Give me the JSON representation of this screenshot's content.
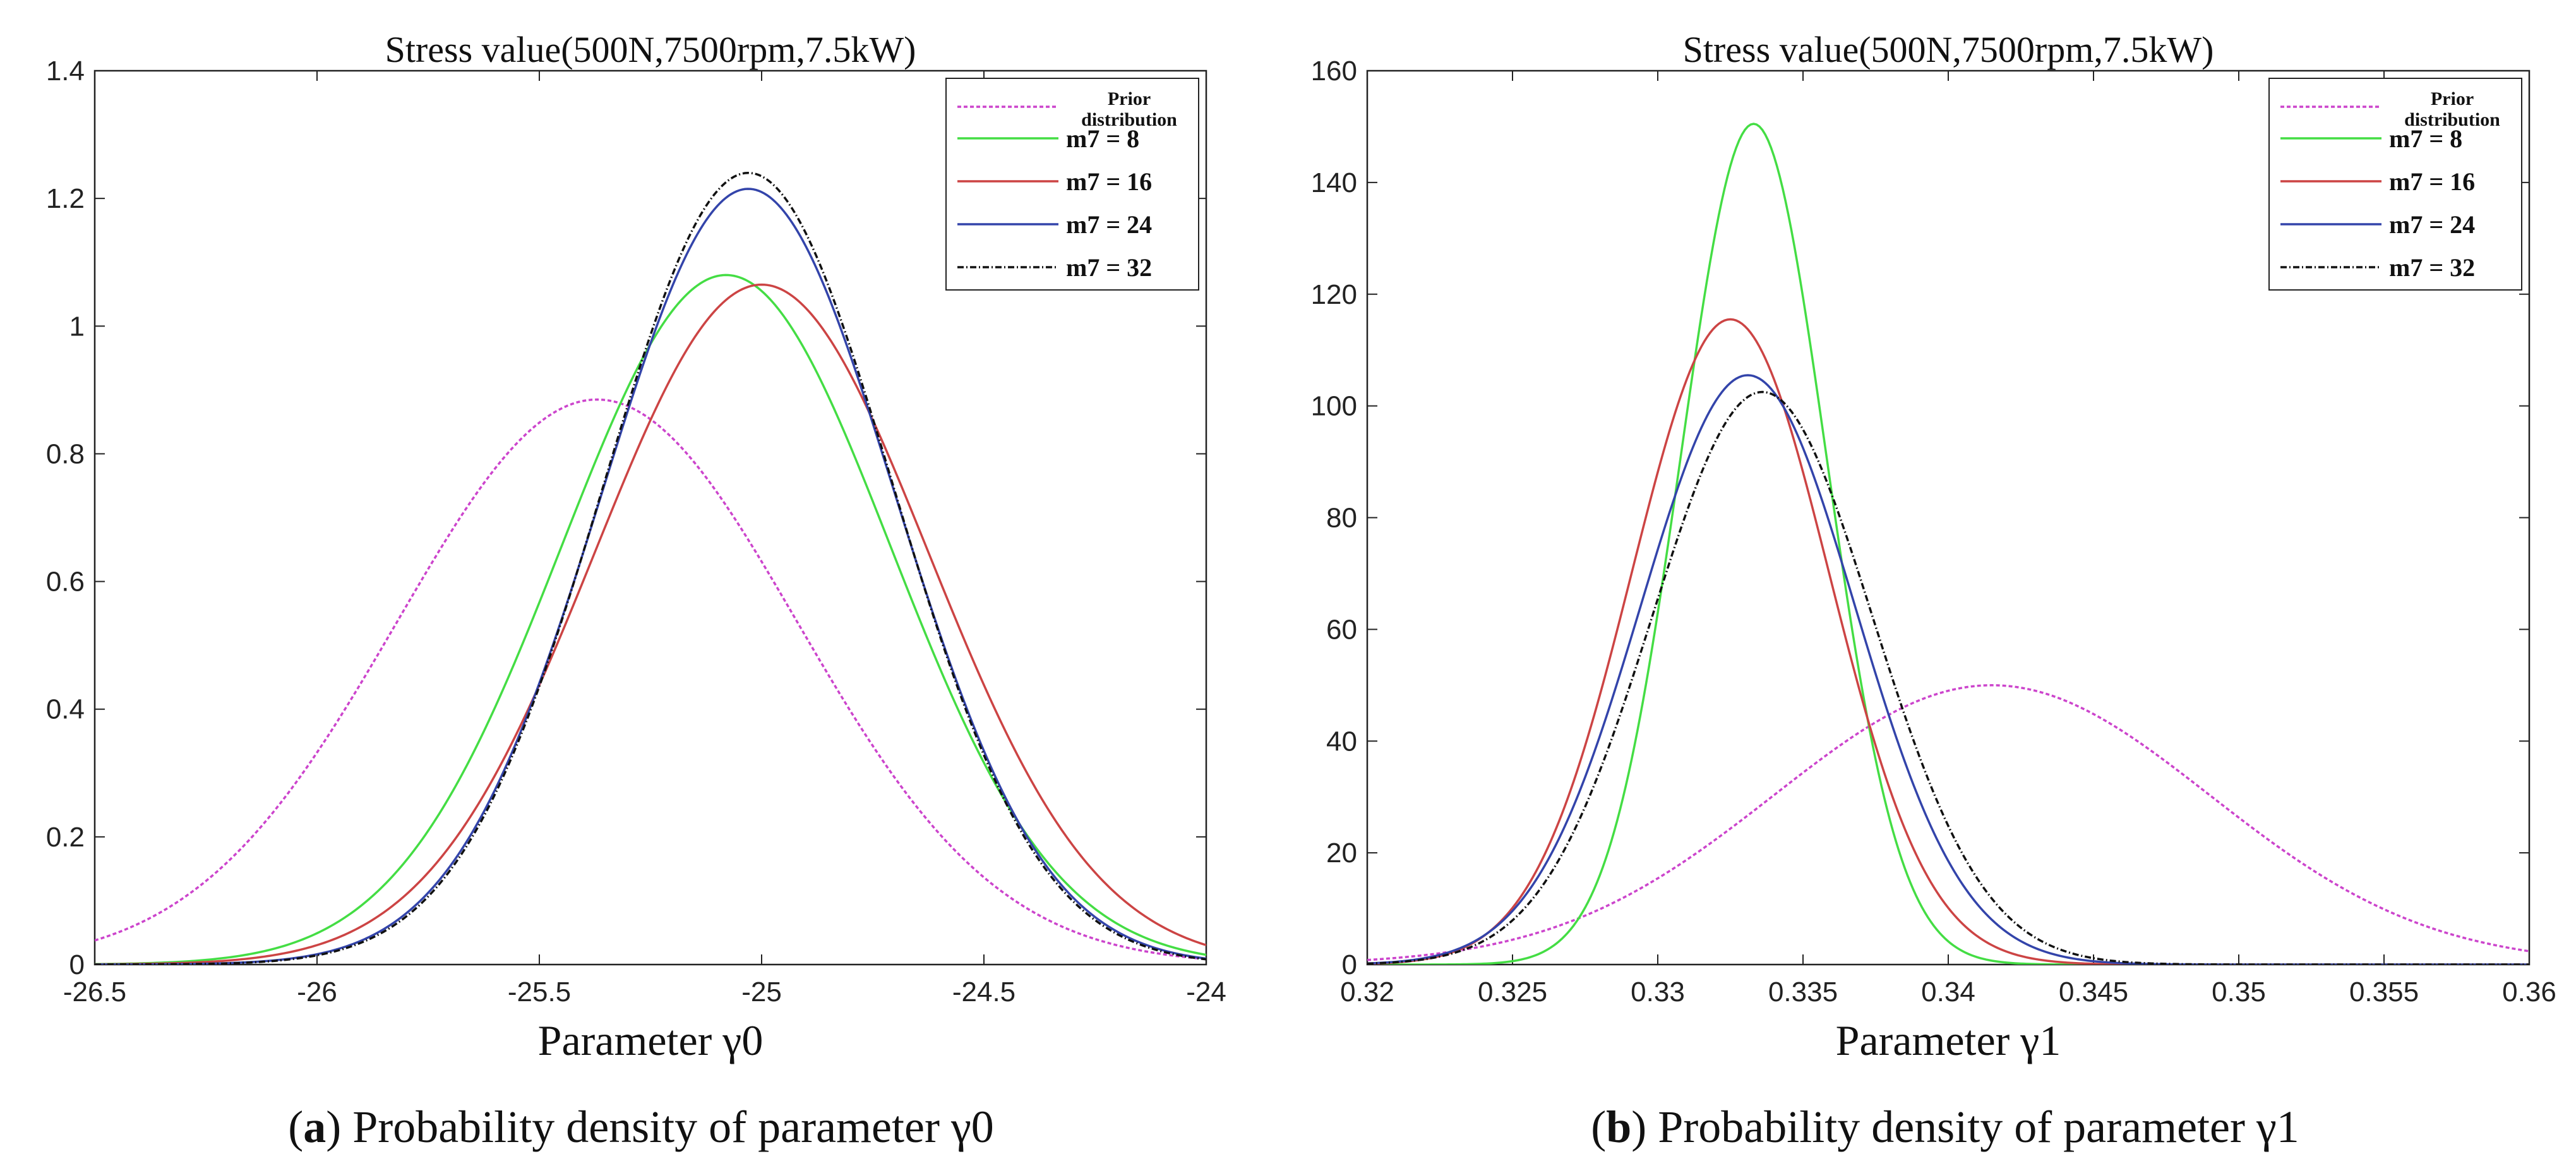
{
  "chart_data": [
    {
      "type": "line",
      "title": "Stress value(500N,7500rpm,7.5kW)",
      "xlabel": "Parameter γ0",
      "ylabel": "",
      "xlim": [
        -26.5,
        -24
      ],
      "ylim": [
        0,
        1.4
      ],
      "xticks": [
        "-26.5",
        "-26",
        "-25.5",
        "-25",
        "-24.5",
        "-24"
      ],
      "yticks": [
        "0",
        "0.2",
        "0.4",
        "0.6",
        "0.8",
        "1",
        "1.2",
        "1.4"
      ],
      "legend_position": "top-right",
      "caption": {
        "letter": "a",
        "text": "Probability density of parameter γ0"
      },
      "series": [
        {
          "name": "Prior distribution",
          "line1": "Prior",
          "line2": "distribution",
          "mean": -25.37,
          "sd": 0.45,
          "peak": 0.885,
          "color": "#cc44cc",
          "dash": "6 4"
        },
        {
          "name": "m7 = 8",
          "mean": -25.08,
          "sd": 0.37,
          "peak": 1.08,
          "color": "#44dd44",
          "dash": ""
        },
        {
          "name": "m7 = 16",
          "mean": -25.0,
          "sd": 0.375,
          "peak": 1.065,
          "color": "#cc4444",
          "dash": ""
        },
        {
          "name": "m7 = 24",
          "mean": -25.03,
          "sd": 0.33,
          "peak": 1.215,
          "color": "#3344aa",
          "dash": ""
        },
        {
          "name": "m7 = 32",
          "mean": -25.03,
          "sd": 0.325,
          "peak": 1.24,
          "color": "#111111",
          "dash": "10 4 2 4"
        }
      ]
    },
    {
      "type": "line",
      "title": "Stress value(500N,7500rpm,7.5kW)",
      "xlabel": "Parameter γ1",
      "ylabel": "",
      "xlim": [
        0.32,
        0.36
      ],
      "ylim": [
        0,
        160
      ],
      "xticks": [
        "0.32",
        "0.325",
        "0.33",
        "0.335",
        "0.34",
        "0.345",
        "0.35",
        "0.355",
        "0.36"
      ],
      "yticks": [
        "0",
        "20",
        "40",
        "60",
        "80",
        "100",
        "120",
        "140",
        "160"
      ],
      "legend_position": "top-right",
      "caption": {
        "letter": "b",
        "text": "Probability density of parameter γ1"
      },
      "series": [
        {
          "name": "Prior distribution",
          "line1": "Prior",
          "line2": "distribution",
          "mean": 0.3415,
          "sd": 0.0075,
          "peak": 50,
          "color": "#cc44cc",
          "dash": "6 4"
        },
        {
          "name": "m7 = 8",
          "mean": 0.3333,
          "sd": 0.0025,
          "peak": 150.5,
          "color": "#44dd44",
          "dash": ""
        },
        {
          "name": "m7 = 16",
          "mean": 0.3325,
          "sd": 0.0034,
          "peak": 115.5,
          "color": "#cc4444",
          "dash": ""
        },
        {
          "name": "m7 = 24",
          "mean": 0.3331,
          "sd": 0.0037,
          "peak": 105.5,
          "color": "#3344aa",
          "dash": ""
        },
        {
          "name": "m7 = 32",
          "mean": 0.3336,
          "sd": 0.0038,
          "peak": 102.5,
          "color": "#111111",
          "dash": "10 4 2 4"
        }
      ]
    }
  ]
}
